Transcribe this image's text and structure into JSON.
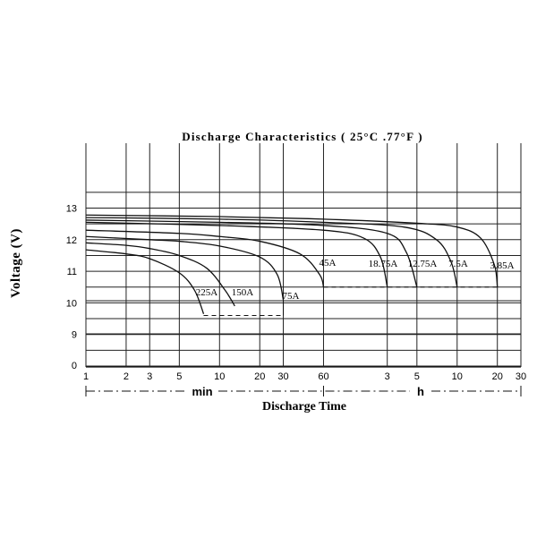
{
  "chart_data": {
    "type": "line",
    "title": "Discharge Characteristics ( 25°C .77°F )",
    "ylabel": "Voltage (V)",
    "xlabel": "Discharge Time",
    "x_scale": "log",
    "x_unit_min_label": "min",
    "x_unit_h_label": "h",
    "y_ticks": [
      "0",
      "9",
      "10",
      "11",
      "12",
      "13"
    ],
    "x_ticks_min": [
      "1",
      "2",
      "3",
      "5",
      "10",
      "20",
      "30",
      "60"
    ],
    "x_ticks_h": [
      "3",
      "5",
      "10",
      "20",
      "30"
    ],
    "series": [
      {
        "name": "225A",
        "points": [
          [
            1,
            11.68
          ],
          [
            2,
            11.55
          ],
          [
            3,
            11.4
          ],
          [
            5,
            10.95
          ],
          [
            6.5,
            10.4
          ],
          [
            7.6,
            9.65
          ]
        ],
        "cutoff": 9.55
      },
      {
        "name": "150A",
        "points": [
          [
            1,
            11.9
          ],
          [
            2,
            11.82
          ],
          [
            3,
            11.72
          ],
          [
            5,
            11.5
          ],
          [
            8,
            11.1
          ],
          [
            11,
            10.4
          ],
          [
            13,
            9.9
          ]
        ],
        "cutoff": 9.95
      },
      {
        "name": "75A",
        "points": [
          [
            1,
            12.1
          ],
          [
            3,
            12.0
          ],
          [
            5,
            11.95
          ],
          [
            10,
            11.8
          ],
          [
            20,
            11.45
          ],
          [
            27,
            10.9
          ],
          [
            30,
            10.1
          ]
        ],
        "cutoff": 9.55
      },
      {
        "name": "45A",
        "points": [
          [
            1,
            12.3
          ],
          [
            5,
            12.2
          ],
          [
            10,
            12.1
          ],
          [
            20,
            11.95
          ],
          [
            40,
            11.55
          ],
          [
            56,
            10.9
          ],
          [
            60,
            10.5
          ]
        ],
        "cutoff": 10.5
      },
      {
        "name": "18.75A",
        "points": [
          [
            1,
            12.55
          ],
          [
            10,
            12.45
          ],
          [
            60,
            12.3
          ],
          [
            120,
            12.05
          ],
          [
            160,
            11.45
          ],
          [
            180,
            10.5
          ]
        ],
        "cutoff": 10.5
      },
      {
        "name": "12.75A",
        "points": [
          [
            1,
            12.62
          ],
          [
            10,
            12.55
          ],
          [
            60,
            12.45
          ],
          [
            180,
            12.2
          ],
          [
            250,
            11.6
          ],
          [
            300,
            10.5
          ]
        ],
        "cutoff": 10.5
      },
      {
        "name": "7.5A",
        "points": [
          [
            1,
            12.7
          ],
          [
            10,
            12.65
          ],
          [
            60,
            12.55
          ],
          [
            240,
            12.4
          ],
          [
            420,
            12.0
          ],
          [
            540,
            11.3
          ],
          [
            600,
            10.5
          ]
        ],
        "cutoff": 10.5
      },
      {
        "name": "3.85A",
        "points": [
          [
            1,
            12.78
          ],
          [
            10,
            12.73
          ],
          [
            60,
            12.65
          ],
          [
            300,
            12.52
          ],
          [
            600,
            12.4
          ],
          [
            900,
            12.05
          ],
          [
            1140,
            11.2
          ],
          [
            1200,
            10.5
          ]
        ],
        "cutoff": 10.5
      }
    ]
  }
}
